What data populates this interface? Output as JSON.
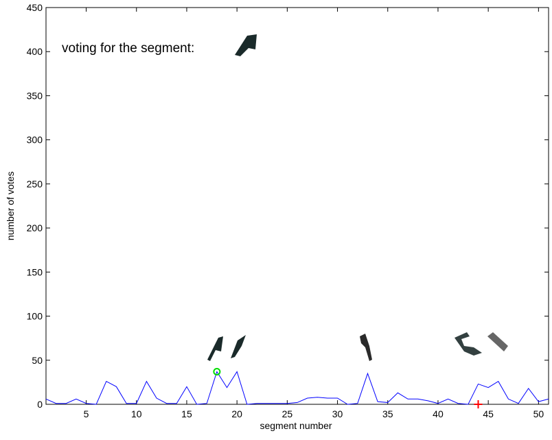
{
  "chart_data": {
    "type": "line",
    "annotation": "voting for the segment:",
    "xlabel": "segment number",
    "ylabel": "number of votes",
    "x": [
      1,
      2,
      3,
      4,
      5,
      6,
      7,
      8,
      9,
      10,
      11,
      12,
      13,
      14,
      15,
      16,
      17,
      18,
      19,
      20,
      21,
      22,
      23,
      24,
      25,
      26,
      27,
      28,
      29,
      30,
      31,
      32,
      33,
      34,
      35,
      36,
      37,
      38,
      39,
      40,
      41,
      42,
      43,
      44,
      45,
      46,
      47,
      48,
      49,
      50,
      51
    ],
    "values": [
      6,
      1,
      1,
      6,
      1,
      0,
      26,
      20,
      1,
      1,
      26,
      7,
      1,
      1,
      20,
      0,
      1,
      37,
      19,
      37,
      0,
      1,
      1,
      1,
      1,
      2,
      7,
      8,
      7,
      7,
      0,
      1,
      35,
      3,
      2,
      13,
      6,
      6,
      4,
      1,
      6,
      1,
      0,
      23,
      19,
      26,
      6,
      1,
      18,
      3,
      6
    ],
    "color": "#0000ff",
    "markers": [
      {
        "x": 18,
        "y": 37,
        "color": "#00dd00",
        "shape": "circle"
      },
      {
        "x": 44,
        "y": 0,
        "color": "#ff0000",
        "shape": "plus"
      }
    ],
    "xlim": [
      1,
      51
    ],
    "ylim": [
      0,
      450
    ],
    "xticks": [
      5,
      10,
      15,
      20,
      25,
      30,
      35,
      40,
      45,
      50
    ],
    "yticks": [
      0,
      50,
      100,
      150,
      200,
      250,
      300,
      350,
      400,
      450
    ]
  }
}
